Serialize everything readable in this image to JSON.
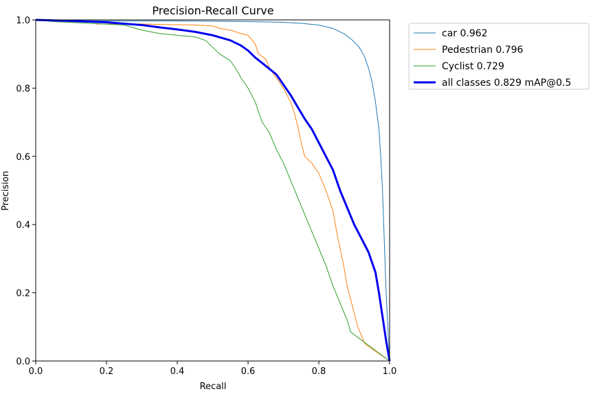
{
  "chart_data": {
    "type": "line",
    "title": "Precision-Recall Curve",
    "xlabel": "Recall",
    "ylabel": "Precision",
    "xlim": [
      0,
      1
    ],
    "ylim": [
      0,
      1
    ],
    "xticks": [
      "0.0",
      "0.2",
      "0.4",
      "0.6",
      "0.8",
      "1.0"
    ],
    "yticks": [
      "0.0",
      "0.2",
      "0.4",
      "0.6",
      "0.8",
      "1.0"
    ],
    "grid": false,
    "legend_position": "outside-top-right",
    "series": [
      {
        "name": "car 0.962",
        "color": "#1f77b4",
        "width": 1,
        "points": [
          [
            0,
            1.0
          ],
          [
            0.05,
            0.998
          ],
          [
            0.1,
            0.998
          ],
          [
            0.2,
            0.997
          ],
          [
            0.3,
            0.997
          ],
          [
            0.4,
            0.997
          ],
          [
            0.5,
            0.996
          ],
          [
            0.6,
            0.995
          ],
          [
            0.7,
            0.993
          ],
          [
            0.75,
            0.99
          ],
          [
            0.8,
            0.985
          ],
          [
            0.84,
            0.975
          ],
          [
            0.87,
            0.96
          ],
          [
            0.89,
            0.945
          ],
          [
            0.91,
            0.925
          ],
          [
            0.92,
            0.91
          ],
          [
            0.93,
            0.89
          ],
          [
            0.94,
            0.86
          ],
          [
            0.95,
            0.82
          ],
          [
            0.96,
            0.76
          ],
          [
            0.97,
            0.68
          ],
          [
            0.975,
            0.6
          ],
          [
            0.98,
            0.5
          ],
          [
            0.985,
            0.35
          ],
          [
            0.99,
            0.2
          ],
          [
            0.995,
            0.1
          ],
          [
            1.0,
            0.0
          ]
        ]
      },
      {
        "name": "Pedestrian 0.796",
        "color": "#ff7f0e",
        "width": 1,
        "points": [
          [
            0,
            1.0
          ],
          [
            0.1,
            0.995
          ],
          [
            0.17,
            0.993
          ],
          [
            0.17,
            0.988
          ],
          [
            0.3,
            0.988
          ],
          [
            0.45,
            0.985
          ],
          [
            0.5,
            0.982
          ],
          [
            0.52,
            0.975
          ],
          [
            0.55,
            0.97
          ],
          [
            0.58,
            0.96
          ],
          [
            0.6,
            0.955
          ],
          [
            0.62,
            0.93
          ],
          [
            0.63,
            0.9
          ],
          [
            0.65,
            0.885
          ],
          [
            0.66,
            0.86
          ],
          [
            0.68,
            0.83
          ],
          [
            0.7,
            0.8
          ],
          [
            0.72,
            0.76
          ],
          [
            0.73,
            0.73
          ],
          [
            0.74,
            0.69
          ],
          [
            0.75,
            0.64
          ],
          [
            0.76,
            0.6
          ],
          [
            0.78,
            0.58
          ],
          [
            0.8,
            0.55
          ],
          [
            0.82,
            0.5
          ],
          [
            0.84,
            0.44
          ],
          [
            0.85,
            0.38
          ],
          [
            0.86,
            0.33
          ],
          [
            0.87,
            0.28
          ],
          [
            0.88,
            0.22
          ],
          [
            0.89,
            0.18
          ],
          [
            0.9,
            0.14
          ],
          [
            0.91,
            0.1
          ],
          [
            0.93,
            0.05
          ],
          [
            1.0,
            0.0
          ]
        ]
      },
      {
        "name": "Cyclist 0.729",
        "color": "#2ca02c",
        "width": 1,
        "points": [
          [
            0,
            1.0
          ],
          [
            0.05,
            0.995
          ],
          [
            0.15,
            0.99
          ],
          [
            0.25,
            0.985
          ],
          [
            0.3,
            0.97
          ],
          [
            0.35,
            0.96
          ],
          [
            0.4,
            0.955
          ],
          [
            0.45,
            0.95
          ],
          [
            0.48,
            0.94
          ],
          [
            0.5,
            0.92
          ],
          [
            0.52,
            0.9
          ],
          [
            0.55,
            0.88
          ],
          [
            0.57,
            0.85
          ],
          [
            0.58,
            0.83
          ],
          [
            0.6,
            0.8
          ],
          [
            0.62,
            0.76
          ],
          [
            0.64,
            0.7
          ],
          [
            0.66,
            0.67
          ],
          [
            0.68,
            0.62
          ],
          [
            0.7,
            0.58
          ],
          [
            0.72,
            0.53
          ],
          [
            0.74,
            0.48
          ],
          [
            0.76,
            0.43
          ],
          [
            0.78,
            0.38
          ],
          [
            0.8,
            0.33
          ],
          [
            0.82,
            0.28
          ],
          [
            0.84,
            0.22
          ],
          [
            0.86,
            0.17
          ],
          [
            0.88,
            0.12
          ],
          [
            0.89,
            0.085
          ],
          [
            1.0,
            0.0
          ]
        ]
      },
      {
        "name": "all classes 0.829 mAP@0.5",
        "color": "#0000ee",
        "width": 3,
        "points": [
          [
            0,
            1.0
          ],
          [
            0.1,
            0.997
          ],
          [
            0.2,
            0.993
          ],
          [
            0.3,
            0.985
          ],
          [
            0.35,
            0.978
          ],
          [
            0.4,
            0.972
          ],
          [
            0.45,
            0.965
          ],
          [
            0.5,
            0.955
          ],
          [
            0.55,
            0.94
          ],
          [
            0.58,
            0.925
          ],
          [
            0.6,
            0.91
          ],
          [
            0.62,
            0.89
          ],
          [
            0.65,
            0.865
          ],
          [
            0.68,
            0.84
          ],
          [
            0.7,
            0.81
          ],
          [
            0.72,
            0.78
          ],
          [
            0.74,
            0.745
          ],
          [
            0.76,
            0.71
          ],
          [
            0.78,
            0.68
          ],
          [
            0.8,
            0.64
          ],
          [
            0.82,
            0.6
          ],
          [
            0.84,
            0.56
          ],
          [
            0.86,
            0.5
          ],
          [
            0.88,
            0.45
          ],
          [
            0.9,
            0.4
          ],
          [
            0.92,
            0.36
          ],
          [
            0.94,
            0.32
          ],
          [
            0.96,
            0.26
          ],
          [
            0.97,
            0.2
          ],
          [
            0.98,
            0.13
          ],
          [
            0.99,
            0.06
          ],
          [
            1.0,
            0.0
          ]
        ]
      }
    ]
  }
}
